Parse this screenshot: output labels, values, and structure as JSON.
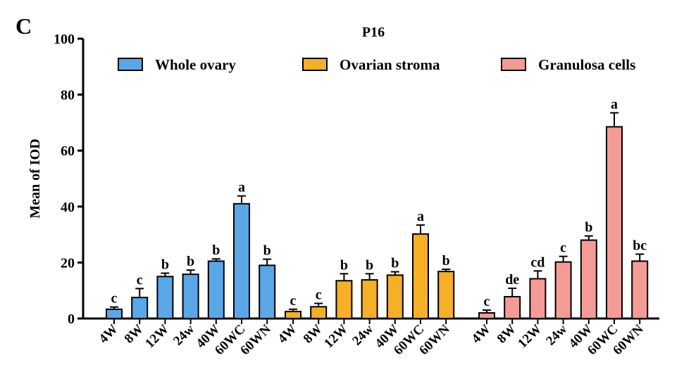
{
  "chart_data": {
    "type": "bar",
    "panel_label": "C",
    "title": "P16",
    "y_label": "Mean of IOD",
    "ylim": [
      0,
      100
    ],
    "yticks": [
      0,
      20,
      40,
      60,
      80,
      100
    ],
    "categories": [
      "4W",
      "8W",
      "12W",
      "24w",
      "40W",
      "60WC",
      "60WN"
    ],
    "series": [
      {
        "name": "Whole ovary",
        "color": "#5aa7e8",
        "values": [
          3.3,
          7.5,
          15,
          15.8,
          20.5,
          41,
          19
        ],
        "errors": [
          0.8,
          3.2,
          1.2,
          1.5,
          0.8,
          2.8,
          2.2
        ],
        "letters": [
          "c",
          "c",
          "b",
          "b",
          "b",
          "a",
          "b"
        ]
      },
      {
        "name": "Ovarian stroma",
        "color": "#f5b027",
        "values": [
          2.5,
          4.2,
          13.5,
          13.8,
          15.5,
          30.2,
          16.8
        ],
        "errors": [
          0.8,
          1.2,
          2.5,
          2.2,
          1.2,
          3.2,
          0.8
        ],
        "letters": [
          "c",
          "c",
          "b",
          "b",
          "b",
          "a",
          "b"
        ]
      },
      {
        "name": "Granulosa cells",
        "color": "#f59b95",
        "values": [
          2,
          7.8,
          14.2,
          20.2,
          28,
          68.5,
          20.5
        ],
        "errors": [
          1,
          3,
          2.8,
          2,
          1.5,
          5,
          2.5
        ],
        "letters": [
          "c",
          "de",
          "cd",
          "c",
          "b",
          "a",
          "bc"
        ]
      }
    ]
  }
}
